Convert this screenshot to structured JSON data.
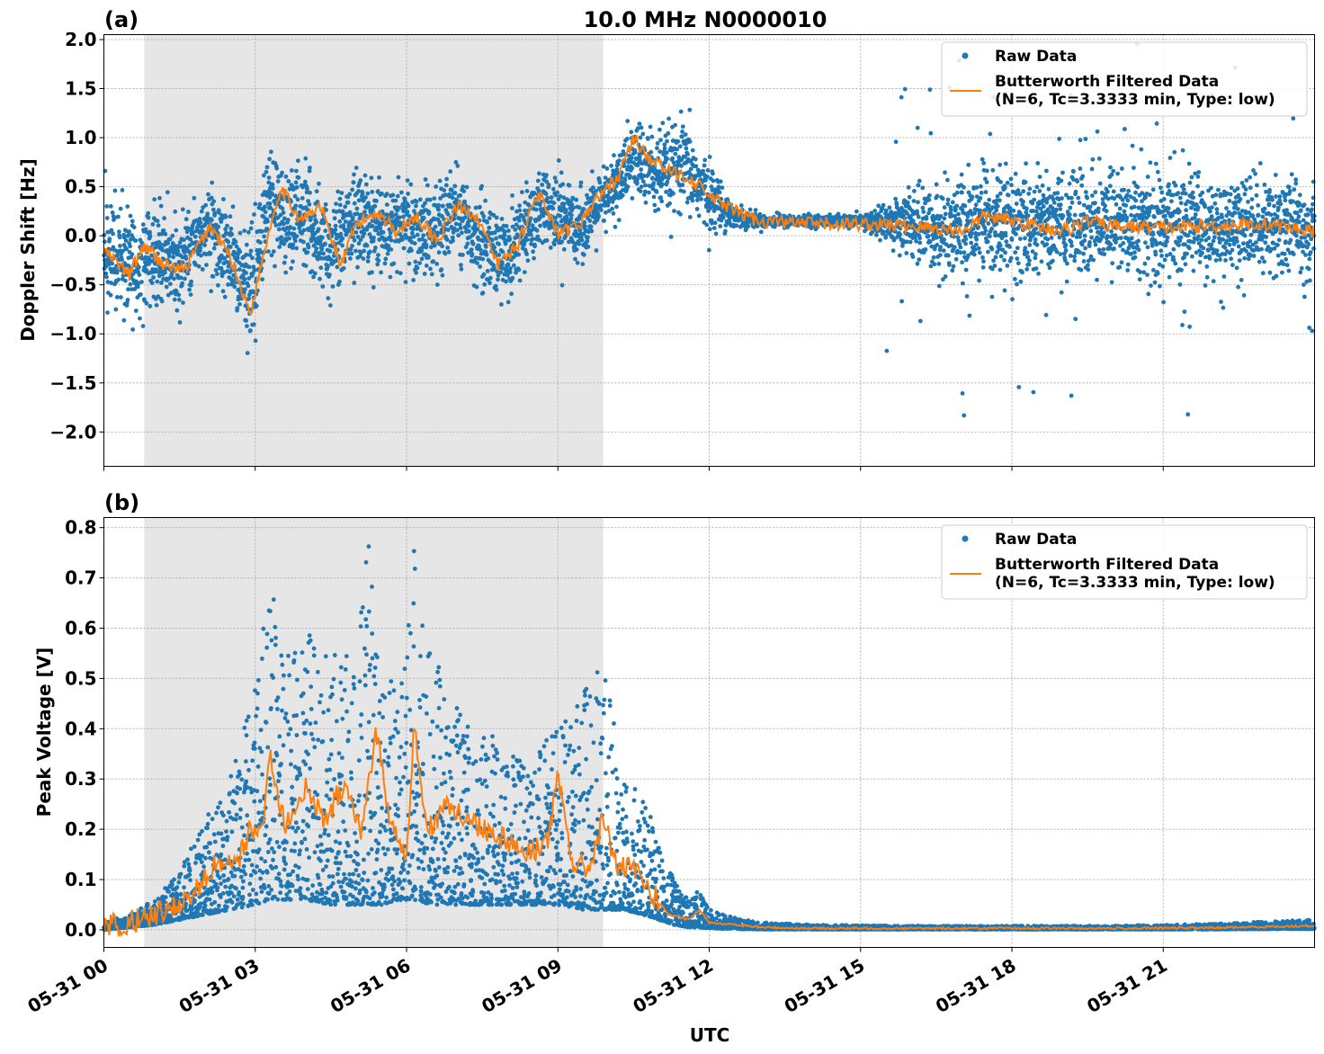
{
  "colors": {
    "raw": "#1f77b4",
    "filtered": "#ff7f0e",
    "shade": "#e6e6e6",
    "grid": "#b0b0b0"
  },
  "figure": {
    "title": "10.0 MHz N0000010",
    "xlabel": "UTC"
  },
  "legend": {
    "raw": "Raw Data",
    "filtered_line1": "Butterworth Filtered Data",
    "filtered_line2": "(N=6, Tc=3.3333 min, Type: low)"
  },
  "x_ticks": [
    "05-31 00",
    "05-31 03",
    "05-31 06",
    "05-31 09",
    "05-31 12",
    "05-31 15",
    "05-31 18",
    "05-31 21"
  ],
  "chart_data": [
    {
      "type": "scatter",
      "panel_label": "(a)",
      "title": "10.0 MHz N0000010",
      "xlabel": "",
      "ylabel": "Doppler Shift [Hz]",
      "xlim_hours": [
        0,
        24
      ],
      "ylim": [
        -2.35,
        2.05
      ],
      "yticks": [
        "2.0",
        "1.5",
        "1.0",
        "0.5",
        "0.0",
        "−0.5",
        "−1.0",
        "−1.5",
        "−2.0"
      ],
      "ytick_values": [
        2.0,
        1.5,
        1.0,
        0.5,
        0.0,
        -0.5,
        -1.0,
        -1.5,
        -2.0
      ],
      "shaded_interval_hours": [
        0.8,
        9.9
      ],
      "grid": true,
      "legend_position": "upper right",
      "series": [
        {
          "name": "Butterworth Filtered Data",
          "kind": "line",
          "x_hours": [
            0,
            0.5,
            0.8,
            1.2,
            1.6,
            2.1,
            2.5,
            2.9,
            3.2,
            3.5,
            3.9,
            4.3,
            4.7,
            5.0,
            5.4,
            5.8,
            6.2,
            6.6,
            7.0,
            7.4,
            7.8,
            8.2,
            8.6,
            9.0,
            9.4,
            9.8,
            10.2,
            10.5,
            10.8,
            11.2,
            11.6,
            12.0,
            12.5,
            13.0,
            14.0,
            15.0,
            16.0,
            17.0,
            17.5,
            18.0,
            18.5,
            19.0,
            19.5,
            20.0,
            21.0,
            22.0,
            23.0,
            24.0
          ],
          "y": [
            -0.15,
            -0.4,
            -0.1,
            -0.3,
            -0.35,
            0.1,
            -0.2,
            -0.8,
            -0.1,
            0.5,
            0.15,
            0.3,
            -0.3,
            0.1,
            0.25,
            0.05,
            0.2,
            -0.05,
            0.3,
            0.2,
            -0.3,
            -0.1,
            0.45,
            0.0,
            0.1,
            0.4,
            0.6,
            1.0,
            0.8,
            0.65,
            0.6,
            0.4,
            0.25,
            0.15,
            0.12,
            0.12,
            0.1,
            0.05,
            0.2,
            0.15,
            0.1,
            0.05,
            0.15,
            0.1,
            0.08,
            0.1,
            0.12,
            0.05
          ]
        },
        {
          "name": "Raw Data",
          "kind": "scatter",
          "x_hours": [
            0,
            0.5,
            1.0,
            1.5,
            2.0,
            2.5,
            2.9,
            3.3,
            3.6,
            4.0,
            4.5,
            5.0,
            5.5,
            6.0,
            6.5,
            7.0,
            7.5,
            8.0,
            8.5,
            9.0,
            9.5,
            10.0,
            10.5,
            11.0,
            11.5,
            12.0,
            12.5,
            13.0,
            14.0,
            15.0,
            16.0,
            16.5,
            17.0,
            17.5,
            18.0,
            18.5,
            19.0,
            19.5,
            20.0,
            20.5,
            21.0,
            21.5,
            22.0,
            22.5,
            23.0,
            23.5,
            24.0
          ],
          "y_center": [
            -0.2,
            -0.3,
            -0.2,
            -0.3,
            0.1,
            -0.2,
            -0.6,
            0.4,
            0.2,
            0.2,
            -0.2,
            0.2,
            0.1,
            0.1,
            0.0,
            0.3,
            -0.1,
            -0.2,
            0.2,
            0.2,
            0.1,
            0.4,
            0.8,
            0.6,
            0.7,
            0.4,
            0.2,
            0.15,
            0.15,
            0.15,
            0.1,
            0.1,
            0.1,
            0.15,
            0.15,
            0.1,
            0.1,
            0.1,
            0.1,
            0.1,
            0.1,
            0.1,
            0.1,
            0.1,
            0.1,
            0.1,
            0.05
          ],
          "y_spread": [
            0.45,
            0.45,
            0.45,
            0.4,
            0.35,
            0.4,
            0.45,
            0.45,
            0.45,
            0.4,
            0.4,
            0.45,
            0.4,
            0.4,
            0.4,
            0.4,
            0.4,
            0.4,
            0.4,
            0.35,
            0.3,
            0.3,
            0.35,
            0.4,
            0.4,
            0.3,
            0.1,
            0.06,
            0.05,
            0.05,
            0.3,
            0.35,
            0.45,
            0.45,
            0.45,
            0.45,
            0.45,
            0.45,
            0.45,
            0.45,
            0.45,
            0.45,
            0.4,
            0.4,
            0.4,
            0.4,
            0.4
          ]
        }
      ]
    },
    {
      "type": "scatter",
      "panel_label": "(b)",
      "xlabel": "UTC",
      "ylabel": "Peak Voltage [V]",
      "xlim_hours": [
        0,
        24
      ],
      "ylim": [
        -0.035,
        0.82
      ],
      "yticks": [
        "0.8",
        "0.7",
        "0.6",
        "0.5",
        "0.4",
        "0.3",
        "0.2",
        "0.1",
        "0.0"
      ],
      "ytick_values": [
        0.8,
        0.7,
        0.6,
        0.5,
        0.4,
        0.3,
        0.2,
        0.1,
        0.0
      ],
      "shaded_interval_hours": [
        0.8,
        9.9
      ],
      "grid": true,
      "legend_position": "upper right",
      "series": [
        {
          "name": "Butterworth Filtered Data",
          "kind": "line",
          "x_hours": [
            0,
            0.5,
            1.0,
            1.5,
            2.0,
            2.3,
            2.6,
            2.9,
            3.1,
            3.3,
            3.6,
            4.0,
            4.4,
            4.8,
            5.1,
            5.4,
            5.7,
            6.0,
            6.15,
            6.4,
            6.8,
            7.2,
            7.6,
            8.0,
            8.4,
            8.8,
            9.0,
            9.3,
            9.6,
            9.9,
            10.2,
            10.5,
            10.8,
            11.2,
            11.6,
            11.8,
            12.0,
            12.5,
            13.0,
            14.0,
            16.0,
            18.0,
            20.0,
            22.0,
            24.0
          ],
          "y": [
            0.005,
            0.015,
            0.03,
            0.05,
            0.1,
            0.14,
            0.12,
            0.2,
            0.18,
            0.35,
            0.2,
            0.28,
            0.22,
            0.3,
            0.2,
            0.4,
            0.2,
            0.15,
            0.4,
            0.2,
            0.25,
            0.22,
            0.2,
            0.18,
            0.15,
            0.18,
            0.3,
            0.13,
            0.12,
            0.22,
            0.12,
            0.12,
            0.08,
            0.03,
            0.02,
            0.04,
            0.015,
            0.01,
            0.005,
            0.003,
            0.003,
            0.003,
            0.003,
            0.004,
            0.008
          ]
        },
        {
          "name": "Raw Data",
          "kind": "scatter",
          "x_hours": [
            0,
            0.5,
            1.0,
            1.5,
            2.0,
            2.5,
            3.0,
            3.3,
            3.6,
            4.0,
            4.5,
            5.0,
            5.25,
            5.5,
            6.0,
            6.15,
            6.5,
            7.0,
            7.5,
            8.0,
            8.5,
            9.0,
            9.5,
            9.9,
            10.3,
            10.7,
            11.0,
            11.3,
            11.6,
            11.8,
            12.0,
            12.5,
            13.0,
            14.0,
            16.0,
            18.0,
            20.0,
            22.0,
            24.0
          ],
          "y_low": [
            0.0,
            0.005,
            0.01,
            0.02,
            0.03,
            0.04,
            0.05,
            0.06,
            0.06,
            0.06,
            0.05,
            0.05,
            0.05,
            0.05,
            0.06,
            0.06,
            0.05,
            0.05,
            0.05,
            0.05,
            0.05,
            0.05,
            0.04,
            0.04,
            0.04,
            0.03,
            0.02,
            0.01,
            0.005,
            0.005,
            0.003,
            0.002,
            0.001,
            0.001,
            0.001,
            0.001,
            0.001,
            0.001,
            0.002
          ],
          "y_high": [
            0.015,
            0.03,
            0.06,
            0.12,
            0.22,
            0.3,
            0.5,
            0.7,
            0.55,
            0.6,
            0.55,
            0.55,
            0.78,
            0.5,
            0.55,
            0.78,
            0.55,
            0.45,
            0.4,
            0.37,
            0.35,
            0.4,
            0.5,
            0.55,
            0.3,
            0.28,
            0.17,
            0.1,
            0.06,
            0.08,
            0.04,
            0.025,
            0.015,
            0.01,
            0.008,
            0.008,
            0.008,
            0.012,
            0.02
          ]
        }
      ]
    }
  ]
}
